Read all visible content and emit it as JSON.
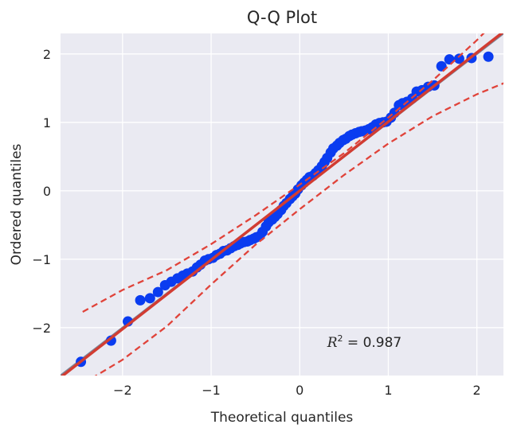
{
  "chart_data": {
    "type": "scatter",
    "title": "Q-Q Plot",
    "xlabel": "Theoretical quantiles",
    "ylabel": "Ordered quantiles",
    "xlim": [
      -2.7,
      2.3
    ],
    "ylim": [
      -2.7,
      2.3
    ],
    "x_ticks": [
      -2,
      -1,
      0,
      1,
      2
    ],
    "y_ticks": [
      -2,
      -1,
      0,
      1,
      2
    ],
    "x_tick_labels": [
      "−2",
      "−1",
      "0",
      "1",
      "2"
    ],
    "y_tick_labels": [
      "−2",
      "−1",
      "0",
      "1",
      "2"
    ],
    "grid": true,
    "annotation": {
      "r2_label": "R",
      "r2_sup": "2",
      "r2_value": " = 0.987"
    },
    "colors": {
      "background": "#EAEAF2",
      "grid": "#FFFFFF",
      "points": "#0A3CF0",
      "fit_line": "#D23C32",
      "ci": "#E0433A",
      "reference_line": "#7A8699"
    },
    "reference_line": {
      "slope": 1,
      "intercept": 0
    },
    "fit_line": {
      "slope": 1.01,
      "intercept": 0.0
    },
    "confidence_band": {
      "x": [
        -2.45,
        -2.0,
        -1.5,
        -1.0,
        -0.5,
        0.0,
        0.5,
        1.0,
        1.5,
        2.0,
        2.45
      ],
      "upper": [
        -1.77,
        -1.45,
        -1.16,
        -0.78,
        -0.36,
        0.09,
        0.55,
        1.07,
        1.61,
        2.2,
        2.8
      ],
      "lower": [
        -2.82,
        -2.47,
        -1.98,
        -1.37,
        -0.79,
        -0.27,
        0.23,
        0.69,
        1.09,
        1.41,
        1.65
      ]
    },
    "points": {
      "x": [
        -2.47,
        -2.13,
        -1.94,
        -1.8,
        -1.69,
        -1.6,
        -1.52,
        -1.45,
        -1.38,
        -1.32,
        -1.27,
        -1.21,
        -1.16,
        -1.12,
        -1.07,
        -1.03,
        -0.98,
        -0.94,
        -0.9,
        -0.86,
        -0.82,
        -0.78,
        -0.74,
        -0.7,
        -0.67,
        -0.63,
        -0.59,
        -0.56,
        -0.52,
        -0.49,
        -0.45,
        -0.42,
        -0.38,
        -0.35,
        -0.31,
        -0.28,
        -0.25,
        -0.21,
        -0.18,
        -0.15,
        -0.11,
        -0.08,
        -0.05,
        -0.02,
        0.02,
        0.05,
        0.08,
        0.11,
        0.15,
        0.18,
        0.21,
        0.25,
        0.28,
        0.31,
        0.35,
        0.38,
        0.42,
        0.45,
        0.49,
        0.52,
        0.56,
        0.59,
        0.63,
        0.67,
        0.7,
        0.74,
        0.78,
        0.82,
        0.86,
        0.9,
        0.94,
        0.98,
        1.03,
        1.07,
        1.12,
        1.16,
        1.21,
        1.27,
        1.32,
        1.38,
        1.45,
        1.52,
        1.6,
        1.69,
        1.8,
        1.94,
        2.13
      ],
      "y": [
        -2.5,
        -2.19,
        -1.91,
        -1.6,
        -1.57,
        -1.48,
        -1.38,
        -1.33,
        -1.28,
        -1.24,
        -1.21,
        -1.18,
        -1.12,
        -1.08,
        -1.02,
        -1.0,
        -0.98,
        -0.94,
        -0.92,
        -0.88,
        -0.87,
        -0.84,
        -0.81,
        -0.79,
        -0.77,
        -0.75,
        -0.74,
        -0.72,
        -0.7,
        -0.68,
        -0.66,
        -0.6,
        -0.52,
        -0.46,
        -0.42,
        -0.38,
        -0.34,
        -0.28,
        -0.22,
        -0.18,
        -0.12,
        -0.08,
        -0.04,
        0.02,
        0.08,
        0.12,
        0.16,
        0.2,
        0.22,
        0.26,
        0.3,
        0.36,
        0.42,
        0.48,
        0.56,
        0.62,
        0.66,
        0.7,
        0.74,
        0.76,
        0.8,
        0.82,
        0.84,
        0.86,
        0.87,
        0.88,
        0.9,
        0.93,
        0.97,
        0.99,
        1.0,
        1.01,
        1.07,
        1.14,
        1.25,
        1.28,
        1.3,
        1.35,
        1.45,
        1.47,
        1.52,
        1.54,
        1.82,
        1.92,
        1.93,
        1.94,
        1.96
      ]
    }
  }
}
